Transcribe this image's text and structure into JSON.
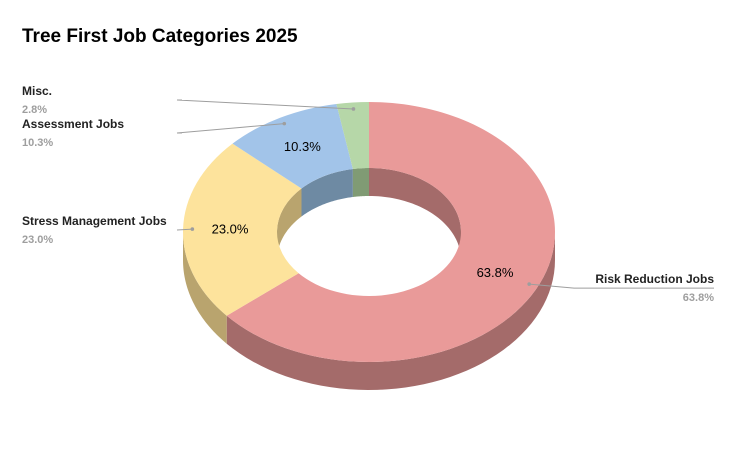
{
  "chart_data": {
    "type": "pie",
    "title": "Tree First Job Categories 2025",
    "slices": [
      {
        "name": "Risk Reduction Jobs",
        "value": 63.8,
        "label": "63.8%",
        "color": "#e99a99",
        "side_color": "#a46b6a"
      },
      {
        "name": "Stress Management Jobs",
        "value": 23.0,
        "label": "23.0%",
        "color": "#fde39c",
        "side_color": "#b9a46e"
      },
      {
        "name": "Assessment Jobs",
        "value": 10.3,
        "label": "10.3%",
        "color": "#a2c4e9",
        "side_color": "#6e8aa3"
      },
      {
        "name": "Misc.",
        "value": 2.8,
        "label": "2.8%",
        "color": "#b6d7a8",
        "side_color": "#809b74"
      }
    ],
    "donut": true,
    "three_d": true,
    "legend": "none"
  }
}
